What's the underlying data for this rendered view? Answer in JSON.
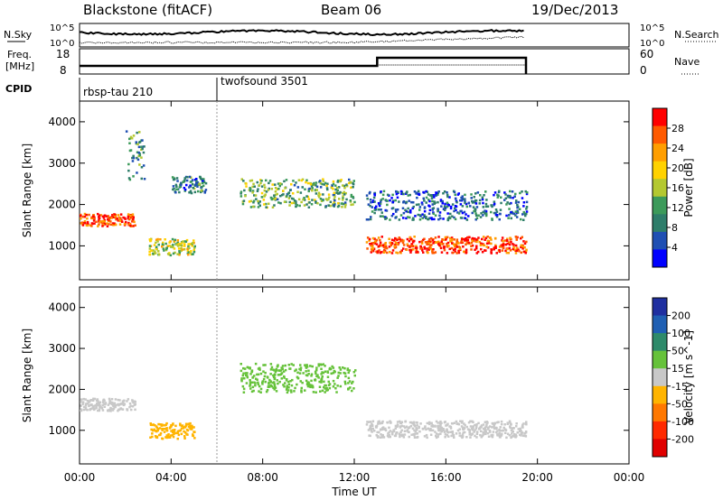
{
  "header": {
    "station": "Blackstone (fitACF)",
    "beam": "Beam 06",
    "date": "19/Dec/2013"
  },
  "noise_panel": {
    "left_label": "N.Sky",
    "right_label": "N.Search",
    "left_ticks": [
      "10^5",
      "10^0"
    ],
    "right_ticks": [
      "10^5",
      "10^0"
    ]
  },
  "freq_panel": {
    "left_label_1": "Freq.",
    "left_label_2": "[MHz]",
    "right_label": "Nave",
    "left_ticks": [
      "18",
      "8"
    ],
    "right_ticks": [
      "60",
      "0"
    ]
  },
  "cpid": {
    "label": "CPID",
    "segments": [
      {
        "name": "rbsp-tau 210"
      },
      {
        "name": "twofsound 3501"
      }
    ]
  },
  "power_panel": {
    "ylabel": "Slant Range [km]",
    "colorbar_label": "Power [dB]",
    "colorbar_ticks": [
      "28",
      "24",
      "20",
      "16",
      "12",
      "8",
      "4"
    ],
    "colorbar_colors": [
      "#ff0000",
      "#ff5a00",
      "#ff9e00",
      "#ffd200",
      "#b4c830",
      "#3c9a5a",
      "#2e7d6a",
      "#1f4fb3",
      "#0000ff"
    ]
  },
  "velocity_panel": {
    "ylabel": "Slant Range [km]",
    "colorbar_label": "Velocity [m s^-1]",
    "colorbar_ticks": [
      "200",
      "100",
      "50",
      "15",
      "-15",
      "-50",
      "-100",
      "-200"
    ],
    "colorbar_colors": [
      "#1f2fa0",
      "#1f5fb3",
      "#2e8a6a",
      "#66c23a",
      "#c8c8c8",
      "#ffb400",
      "#ff7800",
      "#ff2a00",
      "#e00000"
    ]
  },
  "chart_data": {
    "type": "heatmap",
    "xlabel": "Time UT",
    "x_ticks": [
      "00:00",
      "04:00",
      "08:00",
      "12:00",
      "16:00",
      "20:00",
      "00:00"
    ],
    "xlim_hours": [
      0,
      24
    ],
    "ylim_km": [
      180,
      4500
    ],
    "y_ticks": [
      1000,
      2000,
      3000,
      4000
    ],
    "cpid_change_hour": 6.0,
    "data_end_hour": 19.5,
    "power_echo_regions": [
      {
        "t_start": 0.0,
        "t_end": 2.4,
        "range_center": 1650,
        "range_width": 300,
        "power_db": 26
      },
      {
        "t_start": 2.0,
        "t_end": 2.8,
        "range_center": 3200,
        "range_width": 1200,
        "power_db": 10
      },
      {
        "t_start": 3.0,
        "t_end": 5.0,
        "range_center": 1000,
        "range_width": 400,
        "power_db": 16
      },
      {
        "t_start": 4.0,
        "t_end": 5.5,
        "range_center": 2500,
        "range_width": 400,
        "power_db": 8
      },
      {
        "t_start": 7.0,
        "t_end": 12.0,
        "range_center": 2300,
        "range_width": 700,
        "power_db": 12
      },
      {
        "t_start": 12.5,
        "t_end": 19.5,
        "range_center": 1050,
        "range_width": 400,
        "power_db": 26
      },
      {
        "t_start": 12.5,
        "t_end": 19.5,
        "range_center": 2000,
        "range_width": 700,
        "power_db": 6
      }
    ],
    "velocity_echo_regions": [
      {
        "t_start": 0.0,
        "t_end": 2.4,
        "range_center": 1650,
        "range_width": 300,
        "velocity": 0
      },
      {
        "t_start": 3.0,
        "t_end": 5.0,
        "range_center": 1000,
        "range_width": 400,
        "velocity": -50
      },
      {
        "t_start": 7.0,
        "t_end": 12.0,
        "range_center": 2300,
        "range_width": 700,
        "velocity": 50
      },
      {
        "t_start": 12.5,
        "t_end": 19.5,
        "range_center": 1050,
        "range_width": 400,
        "velocity": 0
      }
    ]
  }
}
